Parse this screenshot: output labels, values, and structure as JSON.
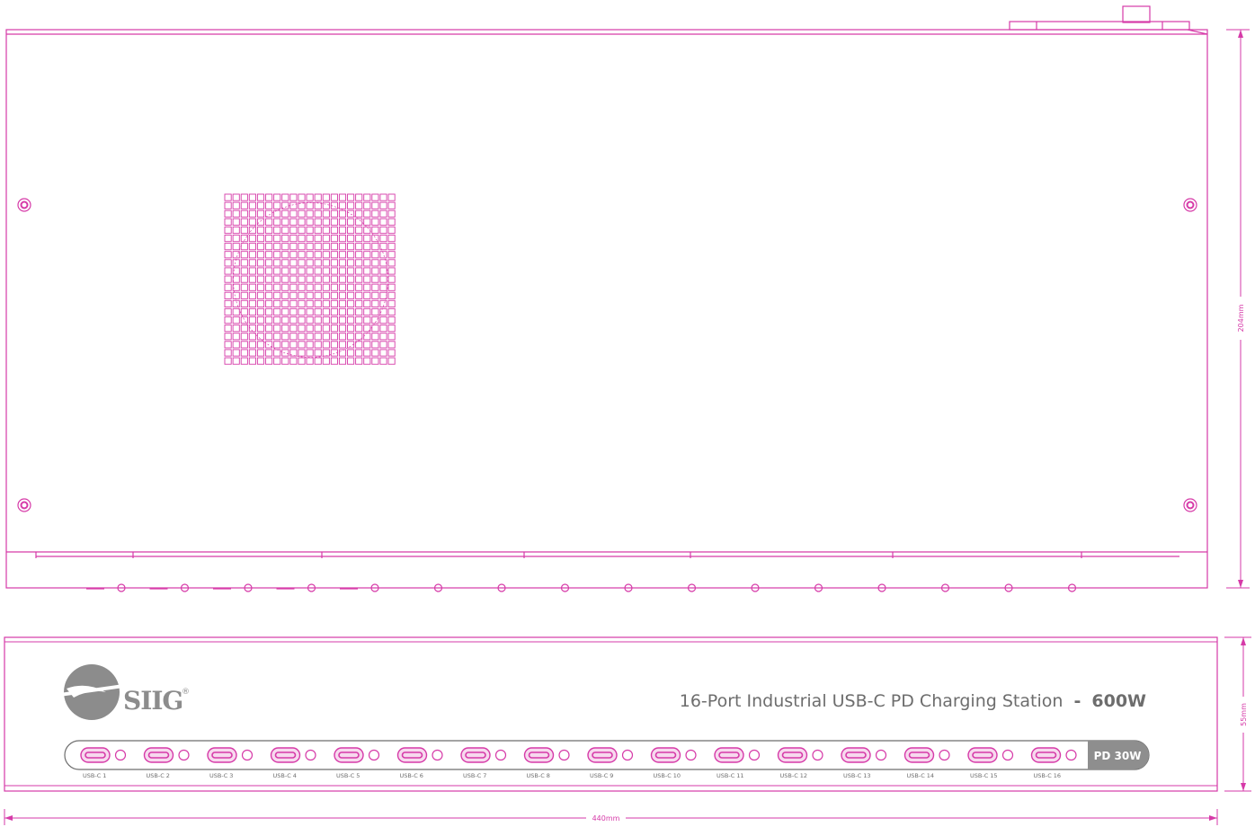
{
  "colors": {
    "line": "#d63aa8",
    "fill_light": "#f7d9ee",
    "logo_gray": "#8c8c8c",
    "text_gray": "#6d6d6d",
    "badge_bg": "#8e8e8e",
    "badge_text": "#ffffff"
  },
  "top_view": {
    "depth_label": "204mm"
  },
  "front_view": {
    "brand": "SIIG",
    "brand_mark": "®",
    "product_title_main": "16-Port Industrial USB-C PD Charging Station",
    "product_title_sep": "-",
    "product_title_power": "600W",
    "height_label": "55mm",
    "badge": "PD 30W",
    "ports": [
      {
        "label": "USB-C 1"
      },
      {
        "label": "USB-C 2"
      },
      {
        "label": "USB-C 3"
      },
      {
        "label": "USB-C 4"
      },
      {
        "label": "USB-C 5"
      },
      {
        "label": "USB-C 6"
      },
      {
        "label": "USB-C 7"
      },
      {
        "label": "USB-C 8"
      },
      {
        "label": "USB-C 9"
      },
      {
        "label": "USB-C 10"
      },
      {
        "label": "USB-C 11"
      },
      {
        "label": "USB-C 12"
      },
      {
        "label": "USB-C 13"
      },
      {
        "label": "USB-C 14"
      },
      {
        "label": "USB-C 15"
      },
      {
        "label": "USB-C 16"
      }
    ]
  },
  "width_label": "440mm"
}
